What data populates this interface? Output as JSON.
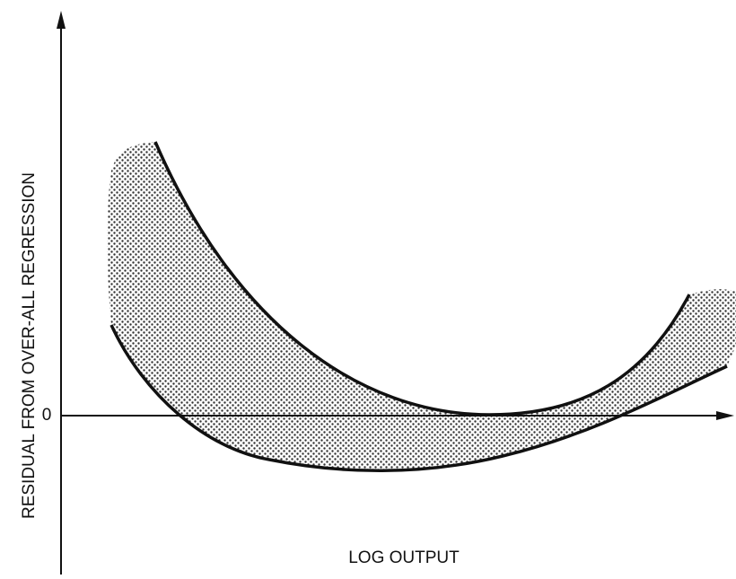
{
  "axes": {
    "y_label": "RESIDUAL FROM OVER-ALL REGRESSION",
    "x_label": "LOG OUTPUT",
    "origin_label": "0"
  }
}
